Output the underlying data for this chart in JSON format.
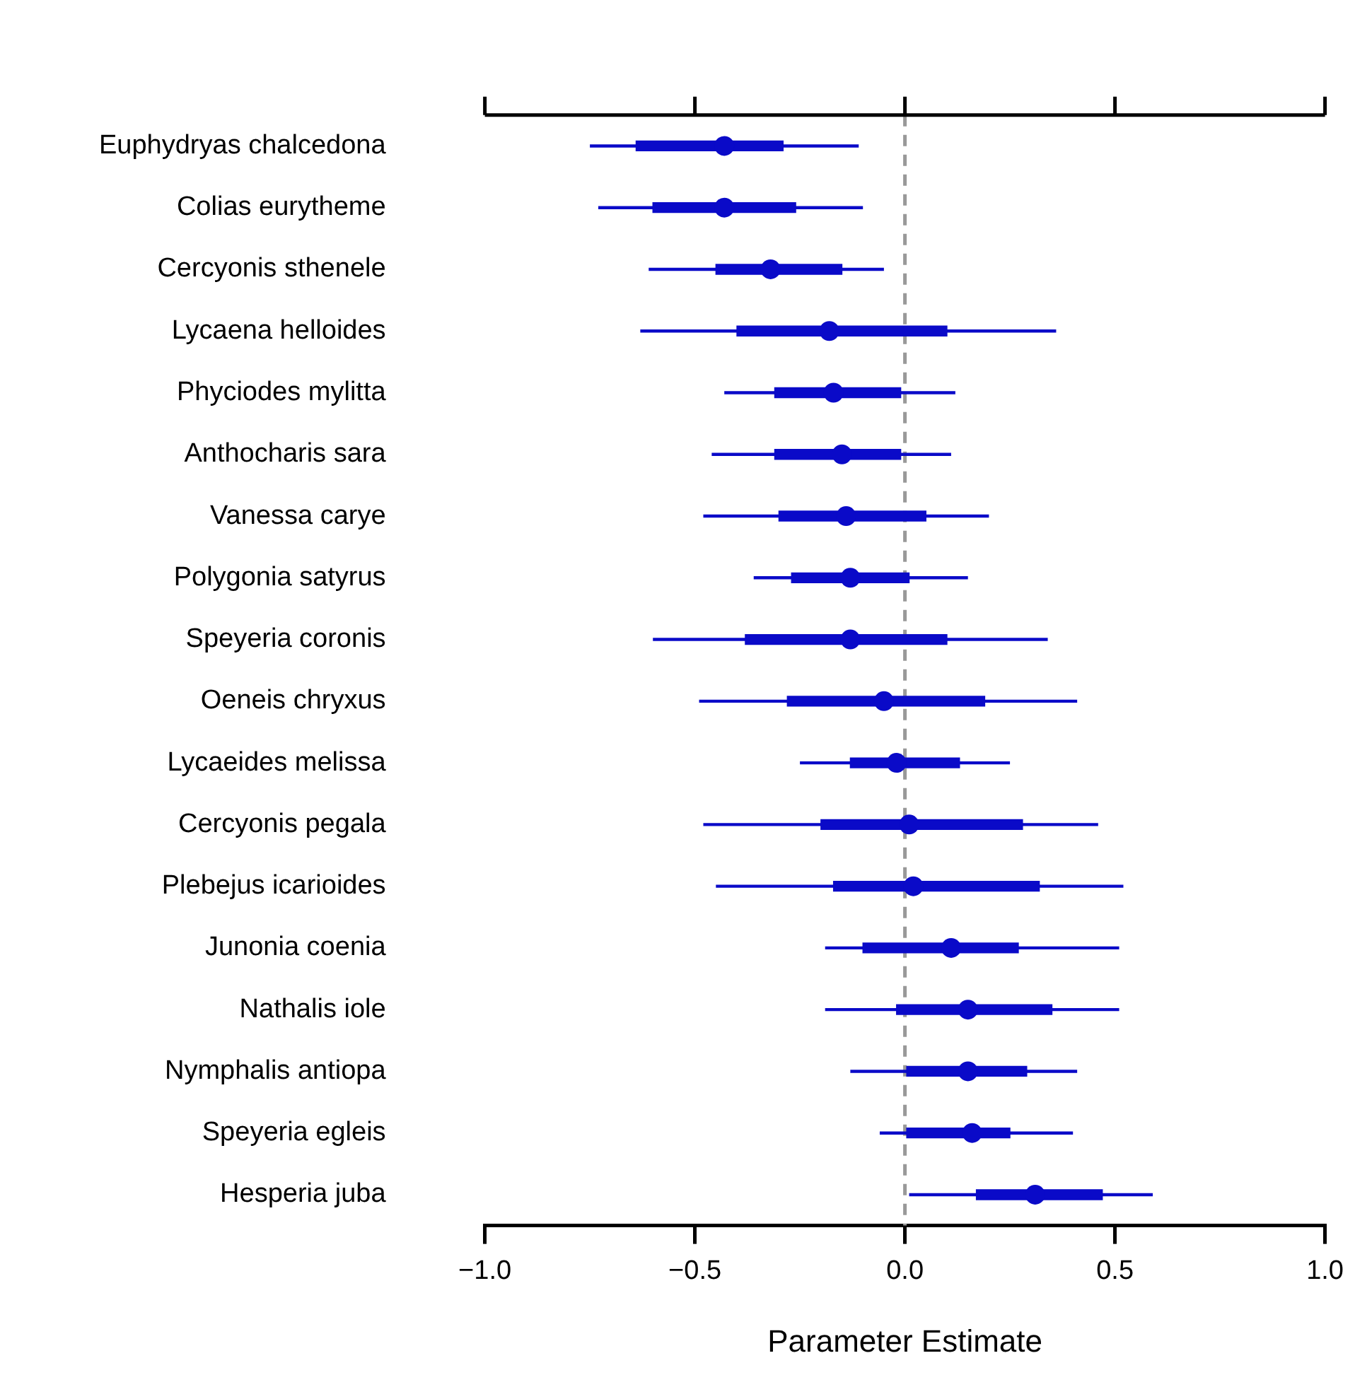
{
  "chart_data": {
    "type": "scatter",
    "orientation": "horizontal",
    "xlabel": "Parameter Estimate",
    "categories": [
      "Euphydryas chalcedona",
      "Colias eurytheme",
      "Cercyonis sthenele",
      "Lycaena helloides",
      "Phyciodes mylitta",
      "Anthocharis sara",
      "Vanessa carye",
      "Polygonia satyrus",
      "Speyeria coronis",
      "Oeneis chryxus",
      "Lycaeides melissa",
      "Cercyonis pegala",
      "Plebejus icarioides",
      "Junonia coenia",
      "Nathalis iole",
      "Nymphalis antiopa",
      "Speyeria egleis",
      "Hesperia juba"
    ],
    "series": [
      {
        "type": "bar",
        "color": "#0a0ac8",
        "base": [
          -0.64,
          -0.6,
          -0.45,
          -0.4,
          -0.31,
          -0.31,
          -0.3,
          -0.27,
          -0.38,
          -0.28,
          -0.13,
          -0.2,
          -0.17,
          -0.1,
          -0.02,
          0,
          0,
          0.17
        ],
        "values": [
          0.35,
          0.34,
          0.3,
          0.5,
          0.3,
          0.3,
          0.35,
          0.28,
          0.48,
          0.47,
          0.26,
          0.48,
          0.49,
          0.37,
          0.37,
          0.29,
          0.25,
          0.3
        ]
      },
      {
        "color": "#0a0ac8",
        "values": [
          -0.43,
          -0.43,
          -0.32,
          -0.18,
          -0.17,
          -0.15,
          -0.14,
          -0.13,
          -0.13,
          -0.05,
          -0.02,
          0.01,
          0.02,
          0.11,
          0.15,
          0.15,
          0.16,
          0.31
        ],
        "errors": [
          [
            -0.75,
            -0.11
          ],
          [
            -0.73,
            -0.1
          ],
          [
            -0.61,
            -0.05
          ],
          [
            -0.63,
            0.36
          ],
          [
            -0.43,
            0.12
          ],
          [
            -0.46,
            0.11
          ],
          [
            -0.48,
            0.2
          ],
          [
            -0.36,
            0.15
          ],
          [
            -0.6,
            0.34
          ],
          [
            -0.49,
            0.41
          ],
          [
            -0.25,
            0.25
          ],
          [
            -0.48,
            0.46
          ],
          [
            -0.45,
            0.52
          ],
          [
            -0.19,
            0.51
          ],
          [
            -0.19,
            0.51
          ],
          [
            -0.13,
            0.41
          ],
          [
            -0.06,
            0.4
          ],
          [
            0.01,
            0.59
          ]
        ]
      }
    ],
    "xlim": [
      -1,
      1
    ],
    "xticks": [
      {
        "value": -1,
        "label": "−1.0"
      },
      {
        "value": -0.5,
        "label": "−0.5"
      },
      {
        "value": 0,
        "label": "0.0"
      },
      {
        "value": 0.5,
        "label": "0.5"
      },
      {
        "value": 1,
        "label": "1.0"
      }
    ],
    "ref_lines": [
      {
        "axis": "x",
        "value": 0,
        "color": "#999999",
        "line_style": "dashed"
      }
    ],
    "marker": "circle",
    "grid": false,
    "legend": false
  }
}
